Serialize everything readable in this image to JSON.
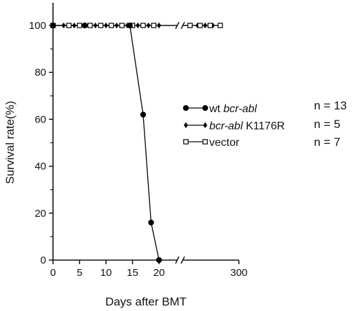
{
  "chart_data": {
    "type": "line",
    "title": "",
    "xlabel": "Days after BMT",
    "ylabel": "Survival rate(%)",
    "ylim": [
      0,
      100
    ],
    "yticks": [
      "0",
      "20",
      "40",
      "60",
      "80",
      "100"
    ],
    "xticks_left": [
      "0",
      "5",
      "10",
      "15",
      "20"
    ],
    "xtick_right": "300",
    "x_axis_break": true,
    "xlim_left": [
      0,
      22
    ],
    "grid": false,
    "legend_position": "right-center",
    "series": [
      {
        "legend_prefix": "wt ",
        "legend_italic": "bcr-abl",
        "legend_suffix": "",
        "n_label": "n = 13",
        "marker": "filled-circle",
        "x": [
          0,
          6,
          14.5,
          17,
          18.5,
          20
        ],
        "y": [
          100,
          100,
          100,
          62,
          16,
          0
        ]
      },
      {
        "legend_prefix": "",
        "legend_italic": "bcr-abl",
        "legend_suffix": " K1176R",
        "n_label": "n = 5",
        "marker": "filled-diamond",
        "x": [
          0,
          2,
          4,
          6,
          8,
          10,
          12,
          14,
          16,
          18,
          20
        ],
        "y": [
          100,
          100,
          100,
          100,
          100,
          100,
          100,
          100,
          100,
          100,
          100
        ],
        "continues_past_break": true,
        "after_break_points": 5
      },
      {
        "legend_prefix": "",
        "legend_italic": "",
        "legend_suffix": "vector",
        "n_label": "n = 7",
        "marker": "open-square",
        "x": [
          0,
          3,
          5,
          7,
          9,
          11,
          13,
          15,
          17,
          19
        ],
        "y": [
          100,
          100,
          100,
          100,
          100,
          100,
          100,
          100,
          100,
          100
        ],
        "continues_past_break": true,
        "after_break_points": 4
      }
    ]
  }
}
